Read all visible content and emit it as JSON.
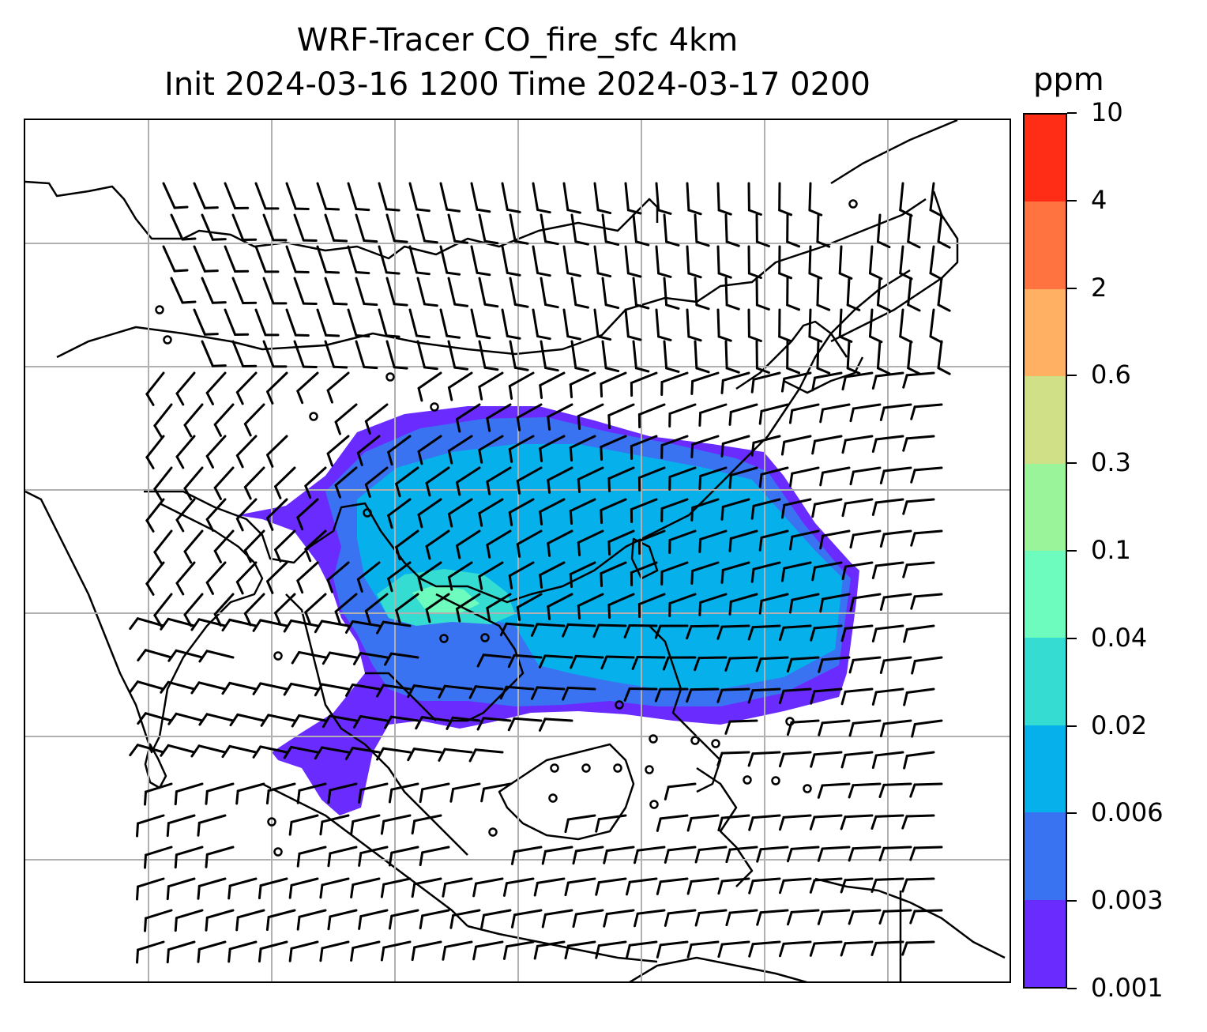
{
  "title": {
    "line1": "WRF-Tracer CO_fire_sfc 4km",
    "line2": "Init 2024-03-16 1200 Time 2024-03-17 0200"
  },
  "colorbar": {
    "unit": "ppm",
    "levels": [
      "0.001",
      "0.003",
      "0.006",
      "0.02",
      "0.04",
      "0.1",
      "0.3",
      "0.6",
      "2",
      "4",
      "10"
    ],
    "colors": [
      "#6a2bff",
      "#3a73f2",
      "#06b0ea",
      "#35dcd2",
      "#6efcbe",
      "#9af49a",
      "#cfe087",
      "#ffb063",
      "#ff7340",
      "#ff2d16"
    ]
  },
  "map": {
    "grid_color": "#b0b0b0",
    "coastline_color": "#000000",
    "barb_color": "#000000"
  }
}
